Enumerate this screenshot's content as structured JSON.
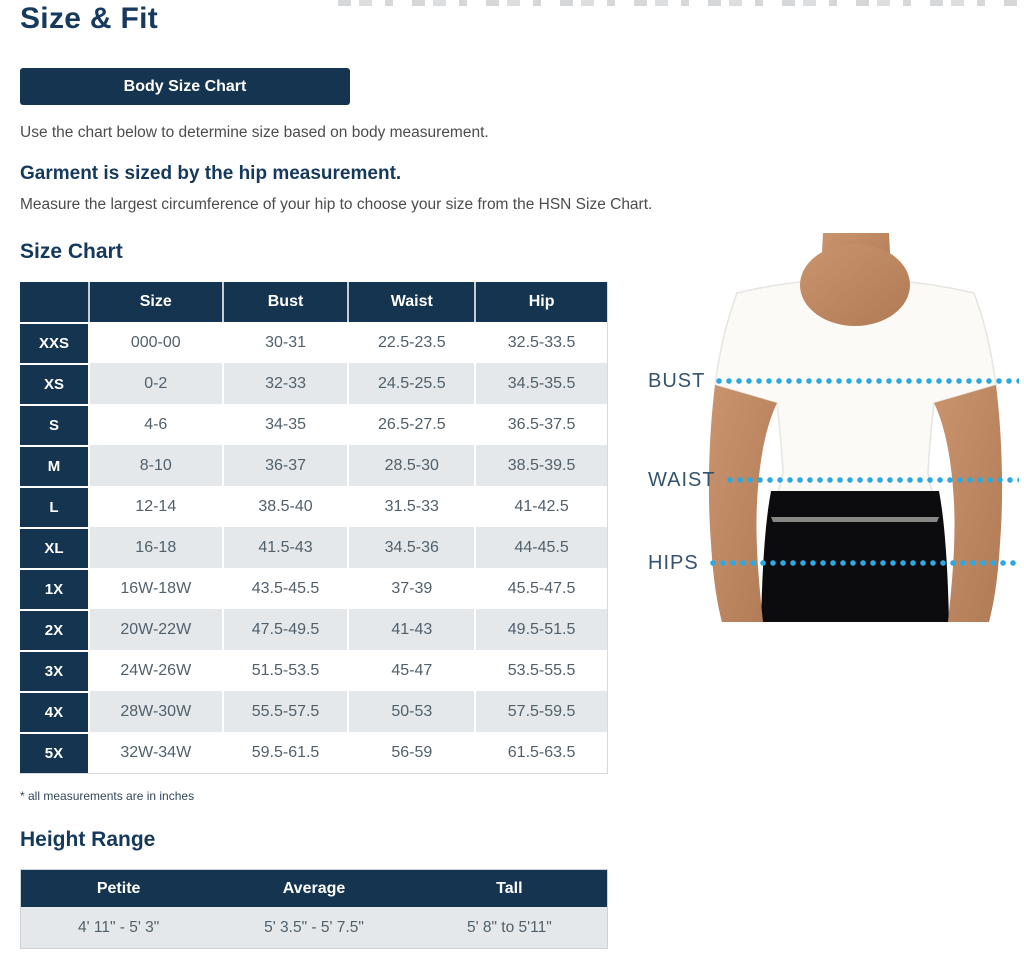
{
  "page": {
    "title": "Size & Fit",
    "body_size_chart_button": "Body Size Chart",
    "intro": "Use the chart below to determine size based on body measurement.",
    "garment_heading": "Garment is sized by the hip measurement.",
    "garment_sub": "Measure the largest circumference of your hip to choose your size from the HSN Size Chart.",
    "size_chart_heading": "Size Chart",
    "footnote": "* all measurements are in inches",
    "height_heading": "Height Range"
  },
  "size_table": {
    "columns": [
      "",
      "Size",
      "Bust",
      "Waist",
      "Hip"
    ],
    "rows": [
      {
        "label": "XXS",
        "size": "000-00",
        "bust": "30-31",
        "waist": "22.5-23.5",
        "hip": "32.5-33.5"
      },
      {
        "label": "XS",
        "size": "0-2",
        "bust": "32-33",
        "waist": "24.5-25.5",
        "hip": "34.5-35.5"
      },
      {
        "label": "S",
        "size": "4-6",
        "bust": "34-35",
        "waist": "26.5-27.5",
        "hip": "36.5-37.5"
      },
      {
        "label": "M",
        "size": "8-10",
        "bust": "36-37",
        "waist": "28.5-30",
        "hip": "38.5-39.5"
      },
      {
        "label": "L",
        "size": "12-14",
        "bust": "38.5-40",
        "waist": "31.5-33",
        "hip": "41-42.5"
      },
      {
        "label": "XL",
        "size": "16-18",
        "bust": "41.5-43",
        "waist": "34.5-36",
        "hip": "44-45.5"
      },
      {
        "label": "1X",
        "size": "16W-18W",
        "bust": "43.5-45.5",
        "waist": "37-39",
        "hip": "45.5-47.5"
      },
      {
        "label": "2X",
        "size": "20W-22W",
        "bust": "47.5-49.5",
        "waist": "41-43",
        "hip": "49.5-51.5"
      },
      {
        "label": "3X",
        "size": "24W-26W",
        "bust": "51.5-53.5",
        "waist": "45-47",
        "hip": "53.5-55.5"
      },
      {
        "label": "4X",
        "size": "28W-30W",
        "bust": "55.5-57.5",
        "waist": "50-53",
        "hip": "57.5-59.5"
      },
      {
        "label": "5X",
        "size": "32W-34W",
        "bust": "59.5-61.5",
        "waist": "56-59",
        "hip": "61.5-63.5"
      }
    ]
  },
  "height_table": {
    "columns": [
      "Petite",
      "Average",
      "Tall"
    ],
    "values": [
      "4' 11\" - 5' 3\"",
      "5' 3.5\" - 5' 7.5\"",
      "5' 8\" to 5'11\""
    ]
  },
  "figure": {
    "labels": [
      "BUST",
      "WAIST",
      "HIPS"
    ]
  },
  "colors": {
    "navy": "#14344F",
    "heading_navy": "#15395C",
    "row_alt": "#E4E8EA",
    "table_text": "#51606B",
    "paragraph_gray": "#4C4C4C",
    "dot_blue": "#2CA9E0",
    "measure_label": "#35536D"
  }
}
